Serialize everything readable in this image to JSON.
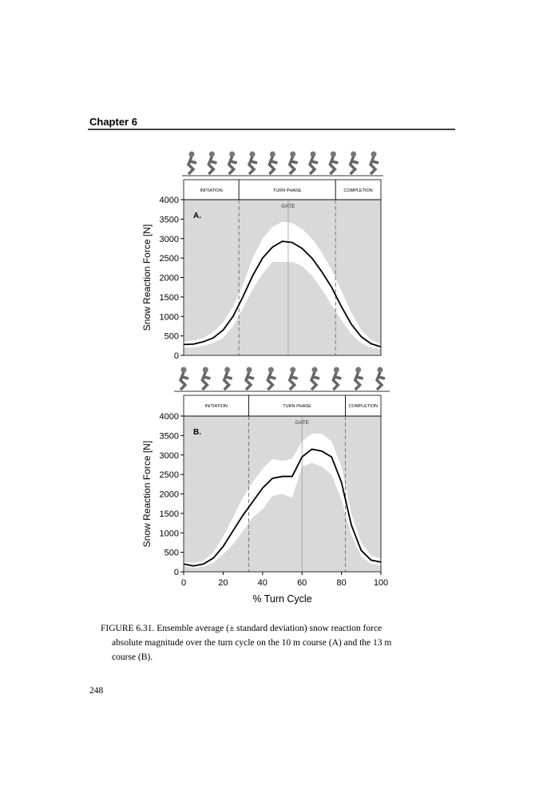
{
  "header": {
    "chapter": "Chapter 6"
  },
  "chart_data": [
    {
      "type": "line",
      "panel": "A.",
      "ylabel": "Snow Reaction Force [N]",
      "xlim": [
        0,
        100
      ],
      "ylim": [
        0,
        4000
      ],
      "yticks": [
        0,
        500,
        1000,
        1500,
        2000,
        2500,
        3000,
        3500,
        4000
      ],
      "phases": [
        {
          "label": "INITIATION",
          "start": 0,
          "end": 28
        },
        {
          "label": "TURN PHASE",
          "start": 28,
          "end": 77
        },
        {
          "label": "COMPLETION",
          "start": 77,
          "end": 100
        }
      ],
      "gate": {
        "label": "GATE",
        "x": 53
      },
      "x": [
        0,
        5,
        10,
        15,
        20,
        25,
        30,
        35,
        40,
        45,
        50,
        55,
        60,
        65,
        70,
        75,
        80,
        85,
        90,
        95,
        100
      ],
      "values": [
        280,
        290,
        350,
        450,
        650,
        1000,
        1500,
        2050,
        2500,
        2780,
        2930,
        2900,
        2750,
        2500,
        2150,
        1750,
        1250,
        800,
        480,
        300,
        220
      ],
      "upper": [
        350,
        380,
        450,
        600,
        850,
        1250,
        1800,
        2500,
        3000,
        3300,
        3430,
        3400,
        3250,
        3000,
        2650,
        2200,
        1650,
        1100,
        650,
        400,
        280
      ],
      "lower": [
        200,
        200,
        250,
        320,
        450,
        750,
        1200,
        1700,
        2100,
        2400,
        2400,
        2400,
        2300,
        2050,
        1700,
        1300,
        900,
        550,
        320,
        200,
        160
      ]
    },
    {
      "type": "line",
      "panel": "B.",
      "ylabel": "Snow Reaction Force [N]",
      "xlabel": "% Turn Cycle",
      "xlim": [
        0,
        100
      ],
      "ylim": [
        0,
        4000
      ],
      "xticks": [
        0,
        20,
        40,
        60,
        80,
        100
      ],
      "yticks": [
        0,
        500,
        1000,
        1500,
        2000,
        2500,
        3000,
        3500,
        4000
      ],
      "phases": [
        {
          "label": "INITIATION",
          "start": 0,
          "end": 33
        },
        {
          "label": "TURN PHASE",
          "start": 33,
          "end": 82
        },
        {
          "label": "COMPLETION",
          "start": 82,
          "end": 100
        }
      ],
      "gate": {
        "label": "GATE",
        "x": 60
      },
      "x": [
        0,
        5,
        10,
        15,
        20,
        25,
        30,
        35,
        40,
        45,
        50,
        55,
        60,
        65,
        70,
        75,
        80,
        85,
        90,
        95,
        100
      ],
      "values": [
        200,
        150,
        200,
        350,
        650,
        1050,
        1450,
        1800,
        2150,
        2400,
        2450,
        2450,
        2950,
        3150,
        3100,
        2950,
        2300,
        1200,
        550,
        300,
        250
      ],
      "upper": [
        250,
        230,
        280,
        500,
        900,
        1400,
        1900,
        2300,
        2650,
        2900,
        2850,
        2900,
        3350,
        3550,
        3550,
        3350,
        2700,
        1500,
        750,
        420,
        330
      ],
      "lower": [
        150,
        100,
        130,
        230,
        450,
        700,
        1050,
        1400,
        1600,
        1950,
        2000,
        1900,
        2700,
        2800,
        2700,
        2500,
        1850,
        950,
        400,
        200,
        170
      ]
    }
  ],
  "caption": {
    "lines": [
      "FIGURE 6.31.  Ensemble average (± standard deviation) snow reaction force",
      "absolute magnitude over the turn cycle on the 10 m course (A) and the 13 m",
      "course (B)."
    ]
  },
  "page_number": "248"
}
